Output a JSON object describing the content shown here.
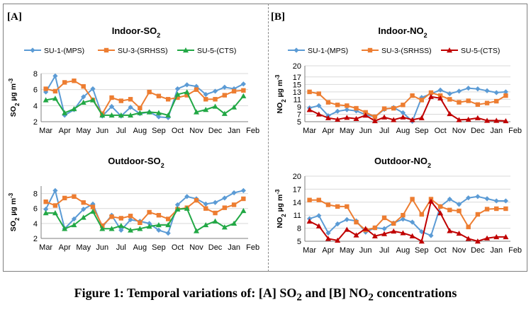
{
  "figure": {
    "caption_main": "Figure 1: Temporal variations of: [A] SO",
    "caption_sub1": "2",
    "caption_mid": " and [B] NO",
    "caption_sub2": "2",
    "caption_end": " concentrations",
    "panel_a_label": "[A]",
    "panel_b_label": "[B]"
  },
  "colors": {
    "SU-1-(MPS)": "#5b9bd5",
    "SU-3-(SRHSS)": "#ed7d31",
    "SU-5-(CTS)": "#22a845",
    "SU-5-(CTS)-no2": "#c00000",
    "grid": "#d9d9d9",
    "axis": "#7f7f7f"
  },
  "chart_data": [
    {
      "type": "line",
      "title": "Indoor-SO",
      "title_sub": "2",
      "ylabel": "SO2 µg m-3",
      "ylabel_main": "SO",
      "ylabel_sub": "2",
      "ylabel_unit": " µg m",
      "ylabel_sup": "-3",
      "ylim": [
        2,
        8
      ],
      "yticks": [
        2,
        4,
        6,
        8
      ],
      "grid": true,
      "x_tick_labels": [
        "Mar",
        "Apr",
        "May",
        "Jun",
        "Jul",
        "Aug",
        "Sep",
        "Oct",
        "Nov",
        "Dec",
        "Jan",
        "Feb"
      ],
      "legend_position": "top",
      "series": [
        {
          "name": "SU-1-(MPS)",
          "marker": "diamond",
          "values": [
            5.7,
            7.7,
            2.8,
            3.5,
            5.1,
            6.1,
            2.7,
            3.9,
            2.7,
            3.8,
            3.0,
            3.2,
            2.6,
            2.5,
            6.1,
            6.6,
            6.4,
            5.4,
            5.8,
            6.3,
            6.1,
            6.7
          ]
        },
        {
          "name": "SU-3-(SRHSS)",
          "marker": "square",
          "values": [
            6.1,
            5.8,
            6.9,
            7.1,
            6.4,
            4.7,
            3.0,
            5.0,
            4.6,
            4.8,
            3.7,
            5.7,
            5.2,
            4.8,
            5.0,
            5.3,
            6.0,
            4.8,
            4.8,
            5.3,
            5.8,
            5.9
          ]
        },
        {
          "name": "SU-5-(CTS)",
          "marker": "triangle",
          "values": [
            4.7,
            4.9,
            3.1,
            3.6,
            4.4,
            4.7,
            2.8,
            2.8,
            2.8,
            2.8,
            3.1,
            3.2,
            3.1,
            2.8,
            5.4,
            5.7,
            3.2,
            3.5,
            3.9,
            3.0,
            3.8,
            5.2
          ]
        }
      ]
    },
    {
      "type": "line",
      "title": "Outdoor-SO",
      "title_sub": "2",
      "ylabel": "SO2 µg m-3",
      "ylabel_main": "SO",
      "ylabel_sub": "2",
      "ylabel_unit": " µg m",
      "ylabel_sup": "-3",
      "ylim": [
        2,
        9
      ],
      "yticks": [
        2,
        4,
        6,
        8
      ],
      "grid": true,
      "x_tick_labels": [
        "Mar",
        "Apr",
        "May",
        "Jun",
        "Jul",
        "Aug",
        "Sep",
        "Oct",
        "Nov",
        "Dec",
        "Jan",
        "Feb"
      ],
      "legend_position": "none",
      "series": [
        {
          "name": "SU-1-(MPS)",
          "marker": "diamond",
          "values": [
            5.9,
            8.4,
            3.3,
            4.6,
            5.9,
            6.6,
            3.5,
            5.1,
            3.1,
            4.5,
            4.3,
            4.0,
            3.1,
            2.7,
            6.5,
            7.6,
            7.3,
            6.6,
            6.8,
            7.4,
            8.1,
            8.4
          ]
        },
        {
          "name": "SU-3-(SRHSS)",
          "marker": "square",
          "values": [
            6.9,
            6.4,
            7.4,
            7.6,
            6.8,
            6.2,
            3.7,
            4.9,
            4.7,
            5.0,
            4.1,
            5.5,
            5.1,
            4.6,
            5.9,
            6.1,
            7.1,
            6.0,
            5.4,
            6.1,
            6.5,
            7.3
          ]
        },
        {
          "name": "SU-5-(CTS)",
          "marker": "triangle",
          "values": [
            5.4,
            5.4,
            3.3,
            3.8,
            4.8,
            5.6,
            3.3,
            3.3,
            3.7,
            3.1,
            3.3,
            3.6,
            3.8,
            3.8,
            5.9,
            6.0,
            3.0,
            3.8,
            4.3,
            3.5,
            4.0,
            5.7
          ]
        }
      ]
    },
    {
      "type": "line",
      "title": "Indoor-NO",
      "title_sub": "2",
      "ylabel": "NO2 µg m-3",
      "ylabel_main": "NO",
      "ylabel_sub": "2",
      "ylabel_unit": " µg m",
      "ylabel_sup": "-3",
      "ylim": [
        5,
        20
      ],
      "yticks": [
        5,
        7,
        9,
        11,
        13,
        15,
        17,
        20
      ],
      "grid": true,
      "x_tick_labels": [
        "Mar",
        "Apr",
        "May",
        "Jun",
        "Jul",
        "Aug",
        "Sep",
        "Oct",
        "Nov",
        "Dec",
        "Jan",
        "Feb"
      ],
      "legend_position": "top",
      "series": [
        {
          "name": "SU-1-(MPS)",
          "marker": "diamond",
          "values": [
            8.7,
            9.3,
            6.6,
            7.8,
            8.2,
            7.9,
            6.9,
            6.3,
            8.3,
            8.8,
            7.4,
            5.1,
            11.5,
            12.5,
            13.5,
            12.5,
            13.2,
            14.0,
            13.8,
            13.3,
            12.8,
            13.0
          ]
        },
        {
          "name": "SU-3-(SRHSS)",
          "marker": "square",
          "values": [
            13.0,
            12.5,
            10.2,
            9.5,
            9.3,
            8.6,
            7.5,
            6.3,
            8.5,
            8.6,
            9.5,
            12.0,
            10.8,
            12.8,
            12.0,
            11.0,
            10.2,
            10.6,
            9.6,
            10.0,
            10.5,
            12.0
          ]
        },
        {
          "name": "SU-5-(CTS)",
          "marker": "triangle",
          "values": [
            8.2,
            7.0,
            6.0,
            5.6,
            6.1,
            5.8,
            6.7,
            5.2,
            6.2,
            5.5,
            6.2,
            5.5,
            6.0,
            11.7,
            11.3,
            7.1,
            5.5,
            5.6,
            6.0,
            5.3,
            5.3,
            5.2
          ]
        }
      ]
    },
    {
      "type": "line",
      "title": "Outdoor-NO",
      "title_sub": "2",
      "ylabel": "NO2 µg m-3",
      "ylabel_main": "NO",
      "ylabel_sub": "2",
      "ylabel_unit": " µg m",
      "ylabel_sup": "-3",
      "ylim": [
        5,
        20
      ],
      "yticks": [
        5,
        8,
        11,
        14,
        17,
        20
      ],
      "grid": true,
      "x_tick_labels": [
        "Mar",
        "Apr",
        "May",
        "Jun",
        "Jul",
        "Aug",
        "Sep",
        "Oct",
        "Nov",
        "Dec",
        "Jan",
        "Feb"
      ],
      "legend_position": "none",
      "series": [
        {
          "name": "SU-1-(MPS)",
          "marker": "diamond",
          "values": [
            10.2,
            10.9,
            6.9,
            9.0,
            10.0,
            9.7,
            7.1,
            8.1,
            7.9,
            9.2,
            10.1,
            9.4,
            7.2,
            6.3,
            13.0,
            14.7,
            13.5,
            15.0,
            15.3,
            14.8,
            14.3,
            14.3
          ]
        },
        {
          "name": "SU-3-(SRHSS)",
          "marker": "square",
          "values": [
            14.5,
            14.5,
            13.4,
            13.0,
            13.0,
            9.4,
            7.6,
            8.1,
            10.4,
            9.1,
            11.0,
            14.7,
            11.2,
            14.7,
            13.0,
            12.2,
            12.0,
            8.3,
            11.2,
            12.4,
            12.5,
            12.5
          ]
        },
        {
          "name": "SU-5-(CTS)",
          "marker": "triangle",
          "values": [
            9.6,
            8.5,
            5.6,
            5.2,
            7.7,
            6.4,
            7.9,
            6.2,
            6.7,
            7.3,
            6.9,
            6.2,
            5.0,
            14.2,
            11.5,
            7.4,
            6.8,
            5.6,
            5.0,
            5.7,
            6.0,
            6.0
          ]
        }
      ]
    }
  ]
}
